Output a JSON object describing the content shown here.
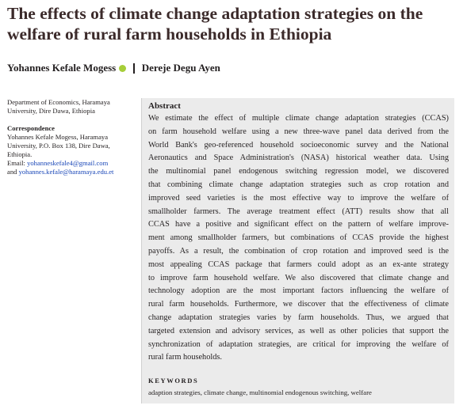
{
  "header": {
    "title_lines": [
      "The effects of climate change adaptation strategies on the",
      "welfare of rural farm households in Ethiopia"
    ],
    "authors": [
      "Yohannes Kefale Mogess",
      "Dereje Degu Ayen"
    ]
  },
  "sidebar": {
    "affiliation_lines": [
      "Department of Economics, Haramaya",
      "University, Dire Dawa, Ethiopia"
    ],
    "correspondence_heading": "Correspondence",
    "correspondence_lines": [
      "Yohannes Kefale Mogess, Haramaya",
      "University, P.O. Box 138, Dire Dawa,",
      "Ethiopia."
    ],
    "email_label": "Email:",
    "email_1": "yohanneskefale4@gmail.com",
    "and_label": "and",
    "email_2": "yohannes.kefale@haramaya.edu.et"
  },
  "abstract": {
    "heading": "Abstract",
    "lines": [
      "We estimate the effect of multiple climate change adaptation strategies (CCAS)",
      "on farm household welfare using a new three-wave panel data derived from the",
      "World Bank's geo-referenced household socioeconomic survey and the National",
      "Aeronautics and Space Administration's (NASA) historical weather data. Using",
      "the multinomial panel endogenous switching regression model, we discovered",
      "that combining climate change adaptation strategies such as crop rotation and",
      "improved seed varieties is the most effective way to improve the welfare of",
      "smallholder farmers. The average treatment effect (ATT) results show that all",
      "CCAS have a positive and significant effect on the pattern of welfare improve-",
      "ment among smallholder farmers, but combinations of CCAS provide the highest",
      "payoffs. As a result, the combination of crop rotation and improved seed is the",
      "most appealing CCAS package that farmers could adopt as an ex-ante strategy",
      "to improve farm household welfare. We also discovered that climate change and",
      "technology adoption are the most important factors influencing the welfare of",
      "rural farm households. Furthermore, we discover that the effectiveness of climate",
      "change adaptation strategies varies by farm households. Thus, we argued that",
      "targeted extension and advisory services, as well as other policies that support the",
      "synchronization of adaptation strategies, are critical for improving the welfare of",
      "rural farm households."
    ]
  },
  "keywords": {
    "heading": "KEYWORDS",
    "text": "adaption strategies, climate change, multinomial endogenous switching, welfare"
  }
}
